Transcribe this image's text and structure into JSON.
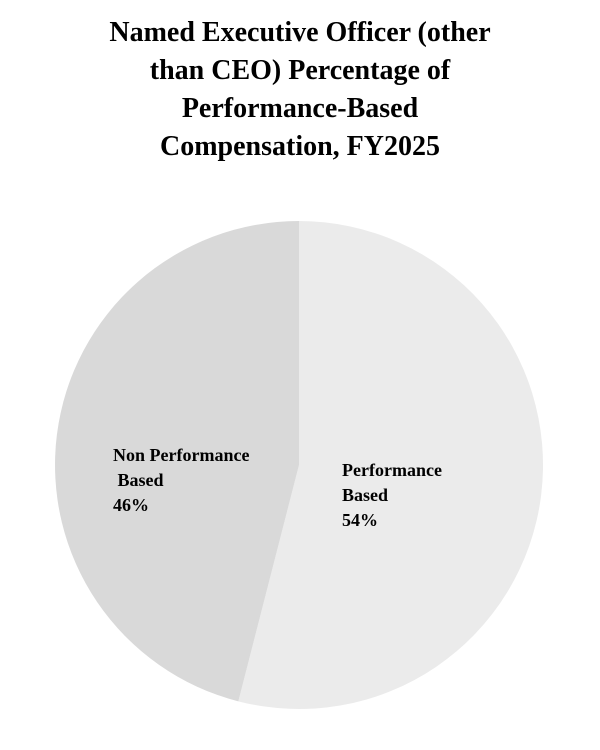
{
  "chart_data": {
    "type": "pie",
    "title_lines": [
      "Named Executive Officer (other",
      "than CEO) Percentage of",
      "Performance-Based",
      "Compensation, FY2025"
    ],
    "slices": [
      {
        "name": "Performance Based",
        "value": 54,
        "label_lines": [
          "Performance",
          "Based",
          "54%"
        ],
        "color": "#ebebeb"
      },
      {
        "name": "Non Performance Based",
        "value": 46,
        "label_lines": [
          "Non Performance",
          " Based",
          "46%"
        ],
        "color": "#d9d9d9"
      }
    ],
    "start_position": "top",
    "direction": "clockwise",
    "legend": "none"
  }
}
